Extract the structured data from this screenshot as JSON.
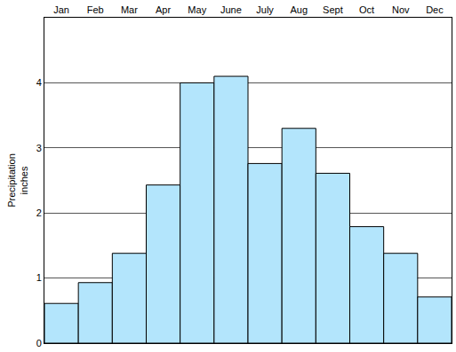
{
  "chart_data": {
    "type": "bar",
    "categories": [
      "Jan",
      "Feb",
      "Mar",
      "Apr",
      "May",
      "June",
      "July",
      "Aug",
      "Sept",
      "Oct",
      "Nov",
      "Dec"
    ],
    "values": [
      0.61,
      0.93,
      1.38,
      2.43,
      4.0,
      4.1,
      2.76,
      3.3,
      2.61,
      1.79,
      1.38,
      0.71
    ],
    "color": "#b3e5fc",
    "y_label": "Precipitation\ninches",
    "ylim": [
      0,
      5
    ],
    "yticks": [
      0,
      1,
      2,
      3,
      4
    ],
    "grid": true
  }
}
